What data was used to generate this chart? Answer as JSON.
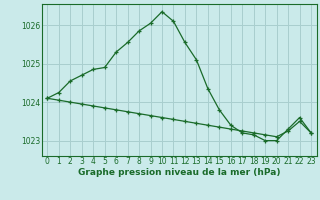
{
  "title": "Graphe pression niveau de la mer (hPa)",
  "background_color": "#caeaea",
  "grid_color": "#a8cece",
  "line_color": "#1a6b2a",
  "xlim": [
    -0.5,
    23.5
  ],
  "ylim": [
    1022.6,
    1026.55
  ],
  "yticks": [
    1023,
    1024,
    1025,
    1026
  ],
  "xticks": [
    0,
    1,
    2,
    3,
    4,
    5,
    6,
    7,
    8,
    9,
    10,
    11,
    12,
    13,
    14,
    15,
    16,
    17,
    18,
    19,
    20,
    21,
    22,
    23
  ],
  "series1_x": [
    0,
    1,
    2,
    3,
    4,
    5,
    6,
    7,
    8,
    9,
    10,
    11,
    12,
    13,
    14,
    15,
    16,
    17,
    18,
    19,
    20,
    21,
    22,
    23
  ],
  "series1_y": [
    1024.1,
    1024.25,
    1024.55,
    1024.7,
    1024.85,
    1024.9,
    1025.3,
    1025.55,
    1025.85,
    1026.05,
    1026.35,
    1026.1,
    1025.55,
    1025.1,
    1024.35,
    1023.8,
    1023.4,
    1023.2,
    1023.15,
    1023.0,
    1023.0,
    1023.3,
    1023.6,
    1023.2
  ],
  "series2_x": [
    0,
    1,
    2,
    3,
    4,
    5,
    6,
    7,
    8,
    9,
    10,
    11,
    12,
    13,
    14,
    15,
    16,
    17,
    18,
    19,
    20,
    21,
    22,
    23
  ],
  "series2_y": [
    1024.1,
    1024.05,
    1024.0,
    1023.95,
    1023.9,
    1023.85,
    1023.8,
    1023.75,
    1023.7,
    1023.65,
    1023.6,
    1023.55,
    1023.5,
    1023.45,
    1023.4,
    1023.35,
    1023.3,
    1023.25,
    1023.2,
    1023.15,
    1023.1,
    1023.25,
    1023.5,
    1023.2
  ],
  "ylabel_fontsize": 5.5,
  "xlabel_fontsize": 5.5,
  "title_fontsize": 6.5
}
